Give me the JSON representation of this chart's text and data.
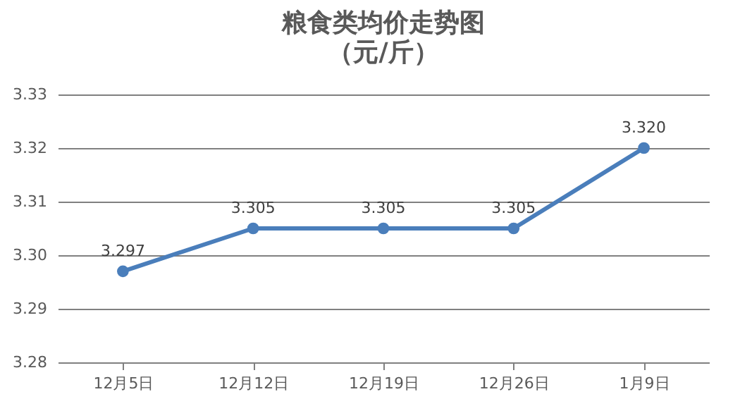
{
  "chart_data": {
    "type": "line",
    "title": "粮食类均价走势图",
    "subtitle": "（元/斤）",
    "categories": [
      "12月5日",
      "12月12日",
      "12月19日",
      "12月26日",
      "1月9日"
    ],
    "series": [
      {
        "color": "#4a7ebb",
        "values": [
          3.297,
          3.305,
          3.305,
          3.305,
          3.32
        ],
        "value_labels": [
          "3.297",
          "3.305",
          "3.305",
          "3.305",
          "3.320"
        ]
      }
    ],
    "ylim": [
      3.28,
      3.33
    ],
    "yticks": [
      3.28,
      3.29,
      {
        "value": 3.3,
        "label": "3.30"
      },
      3.31,
      3.32,
      3.33
    ],
    "grid": "y",
    "legend": false,
    "marker": "circle",
    "line_style": "solid"
  }
}
